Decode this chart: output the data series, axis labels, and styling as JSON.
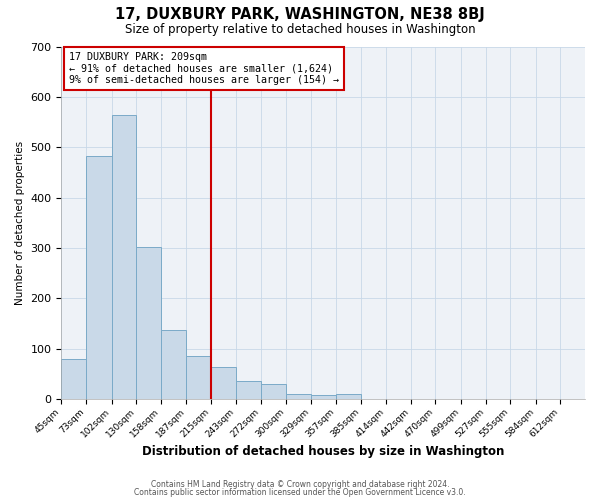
{
  "title": "17, DUXBURY PARK, WASHINGTON, NE38 8BJ",
  "subtitle": "Size of property relative to detached houses in Washington",
  "xlabel": "Distribution of detached houses by size in Washington",
  "ylabel": "Number of detached properties",
  "bin_labels": [
    "45sqm",
    "73sqm",
    "102sqm",
    "130sqm",
    "158sqm",
    "187sqm",
    "215sqm",
    "243sqm",
    "272sqm",
    "300sqm",
    "329sqm",
    "357sqm",
    "385sqm",
    "414sqm",
    "442sqm",
    "470sqm",
    "499sqm",
    "527sqm",
    "555sqm",
    "584sqm",
    "612sqm"
  ],
  "bin_edges": [
    45,
    73,
    102,
    130,
    158,
    187,
    215,
    243,
    272,
    300,
    329,
    357,
    385,
    414,
    442,
    470,
    499,
    527,
    555,
    584,
    612
  ],
  "bar_heights": [
    80,
    483,
    565,
    302,
    138,
    85,
    63,
    36,
    30,
    10,
    8,
    10,
    0,
    0,
    0,
    0,
    0,
    0,
    0,
    0
  ],
  "bar_color": "#c9d9e8",
  "bar_edgecolor": "#7aaac8",
  "property_line_x": 215,
  "annotation_title": "17 DUXBURY PARK: 209sqm",
  "annotation_line1": "← 91% of detached houses are smaller (1,624)",
  "annotation_line2": "9% of semi-detached houses are larger (154) →",
  "annotation_box_edgecolor": "#cc0000",
  "vline_color": "#cc0000",
  "ylim": [
    0,
    700
  ],
  "yticks": [
    0,
    100,
    200,
    300,
    400,
    500,
    600,
    700
  ],
  "grid_color": "#c8d8e8",
  "plot_bg_color": "#eef2f7",
  "footer1": "Contains HM Land Registry data © Crown copyright and database right 2024.",
  "footer2": "Contains public sector information licensed under the Open Government Licence v3.0."
}
